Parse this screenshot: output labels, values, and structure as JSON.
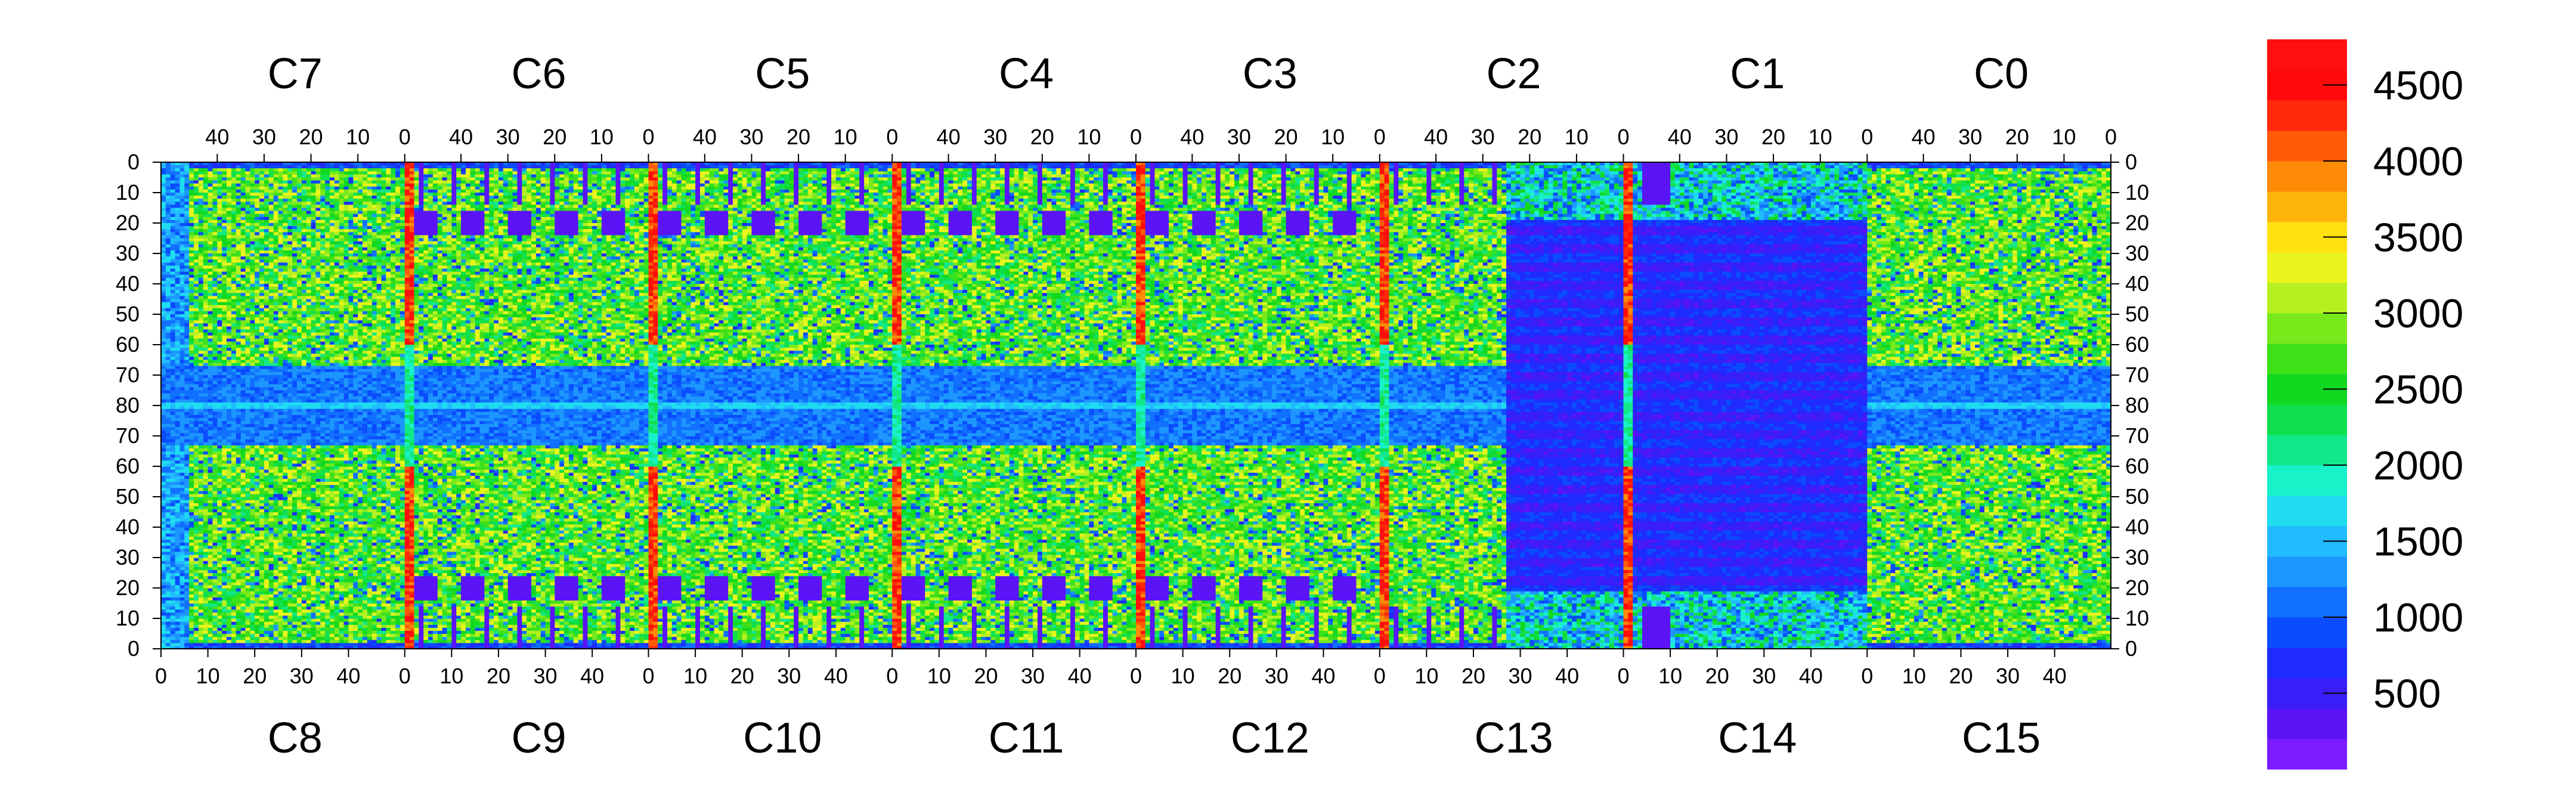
{
  "chart_data": {
    "type": "heatmap",
    "title": "",
    "xlabel": "",
    "ylabel": "",
    "top_chip_labels": [
      "C7",
      "C6",
      "C5",
      "C4",
      "C3",
      "C2",
      "C1",
      "C0"
    ],
    "bottom_chip_labels": [
      "C8",
      "C9",
      "C10",
      "C11",
      "C12",
      "C13",
      "C14",
      "C15"
    ],
    "top_x_ticks": [
      "40",
      "30",
      "20",
      "10",
      "0"
    ],
    "bottom_x_ticks": [
      "0",
      "10",
      "20",
      "30",
      "40"
    ],
    "y_ticks": [
      "0",
      "10",
      "20",
      "30",
      "40",
      "50",
      "60",
      "70",
      "80",
      "70",
      "60",
      "50",
      "40",
      "30",
      "20",
      "10",
      "0"
    ],
    "columns_per_chip": 52,
    "rows": 80,
    "color_scale": {
      "min": 0,
      "max": 4800,
      "ticks": [
        500,
        1000,
        1500,
        2000,
        2500,
        3000,
        3500,
        4000,
        4500
      ],
      "tick_labels": [
        "500",
        "1000",
        "1500",
        "2000",
        "2500",
        "3000",
        "3500",
        "4000",
        "4500"
      ],
      "levels": [
        "#7a1cff",
        "#5a14f5",
        "#3a1ef7",
        "#1f2bff",
        "#0b4cff",
        "#1170ff",
        "#1d97ff",
        "#21bbff",
        "#1fdcf0",
        "#18f2c8",
        "#12e88a",
        "#10e04d",
        "#12d820",
        "#3ee01a",
        "#78ea1c",
        "#b6f020",
        "#e8f41c",
        "#ffe010",
        "#ffb40a",
        "#ff8a06",
        "#ff5a08",
        "#ff2a0a",
        "#ff0a0a",
        "#ff1010"
      ]
    },
    "grid": false,
    "legend": "right colorbar"
  }
}
